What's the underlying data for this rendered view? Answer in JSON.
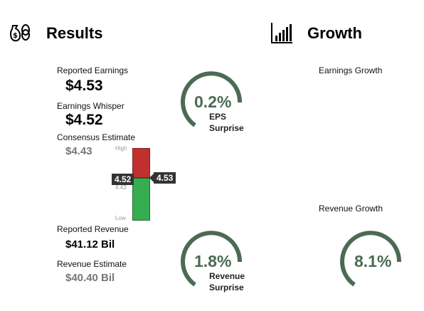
{
  "results": {
    "title": "Results",
    "icon": "money-bag-coins-icon"
  },
  "growth": {
    "title": "Growth",
    "icon": "bar-chart-icon",
    "earnings_growth_label": "Earnings Growth",
    "revenue_growth_label": "Revenue Growth",
    "revenue_growth_pct": "8.1%",
    "revenue_growth_value": 8.1
  },
  "earnings": {
    "reported_label": "Reported Earnings",
    "reported_value": "$4.53",
    "whisper_label": "Earnings Whisper",
    "whisper_value": "$4.52",
    "consensus_label": "Consensus Estimate",
    "consensus_value": "$4.43"
  },
  "eps_surprise": {
    "pct": "0.2%",
    "value": 0.2,
    "caption_line1": "EPS",
    "caption_line2": "Surprise"
  },
  "range_bar": {
    "high_label": "High",
    "low_label": "Low",
    "consensus_tick": "4.43",
    "whisper_tag": "4.52",
    "reported_tag": "4.53"
  },
  "revenue": {
    "reported_label": "Reported Revenue",
    "reported_value": "$41.12 Bil",
    "estimate_label": "Revenue Estimate",
    "estimate_value": "$40.40 Bil"
  },
  "revenue_surprise": {
    "pct": "1.8%",
    "value": 1.8,
    "caption_line1": "Revenue",
    "caption_line2": "Surprise"
  },
  "colors": {
    "gauge": "#4b6b53",
    "bar_red": "#c0302f",
    "bar_green": "#36ad50",
    "tag_bg": "#333333"
  }
}
